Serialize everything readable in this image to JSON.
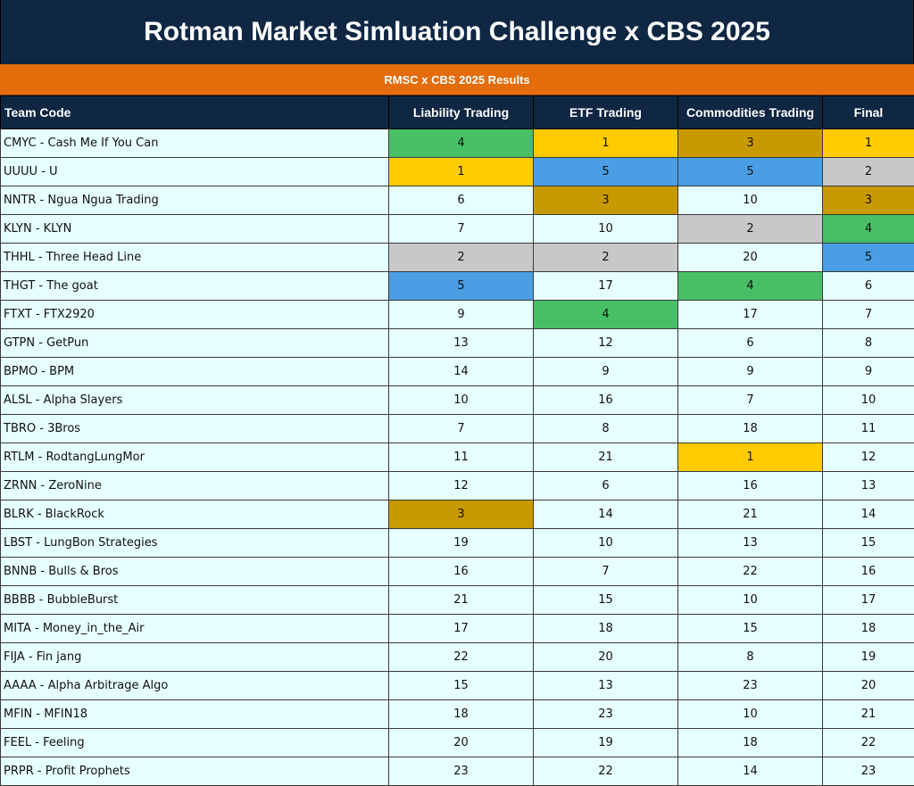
{
  "title": "Rotman Market Simluation Challenge x CBS 2025",
  "subtitle": "RMSC x CBS 2025 Results",
  "columns": [
    "Team Code",
    "Liability Trading",
    "ETF Trading",
    "Commodities Trading",
    "Final"
  ],
  "rank_colors": {
    "1": "#ffcc00",
    "2": "#c8c8c8",
    "3": "#c99a00",
    "4": "#48bf67",
    "5": "#4a9ee3"
  },
  "rows": [
    {
      "team": "CMYC - Cash Me If You Can",
      "liability": 4,
      "etf": 1,
      "commodities": 3,
      "final": 1
    },
    {
      "team": "UUUU - U",
      "liability": 1,
      "etf": 5,
      "commodities": 5,
      "final": 2
    },
    {
      "team": "NNTR - Ngua Ngua Trading",
      "liability": 6,
      "etf": 3,
      "commodities": 10,
      "final": 3
    },
    {
      "team": "KLYN - KLYN",
      "liability": 7,
      "etf": 10,
      "commodities": 2,
      "final": 4
    },
    {
      "team": "THHL - Three Head Line",
      "liability": 2,
      "etf": 2,
      "commodities": 20,
      "final": 5
    },
    {
      "team": "THGT - The goat",
      "liability": 5,
      "etf": 17,
      "commodities": 4,
      "final": 6
    },
    {
      "team": "FTXT - FTX2920",
      "liability": 9,
      "etf": 4,
      "commodities": 17,
      "final": 7
    },
    {
      "team": "GTPN - GetPun",
      "liability": 13,
      "etf": 12,
      "commodities": 6,
      "final": 8
    },
    {
      "team": "BPMO - BPM",
      "liability": 14,
      "etf": 9,
      "commodities": 9,
      "final": 9
    },
    {
      "team": "ALSL - Alpha Slayers",
      "liability": 10,
      "etf": 16,
      "commodities": 7,
      "final": 10
    },
    {
      "team": "TBRO - 3Bros",
      "liability": 7,
      "etf": 8,
      "commodities": 18,
      "final": 11
    },
    {
      "team": "RTLM - RodtangLungMor",
      "liability": 11,
      "etf": 21,
      "commodities": 1,
      "final": 12
    },
    {
      "team": "ZRNN - ZeroNine",
      "liability": 12,
      "etf": 6,
      "commodities": 16,
      "final": 13
    },
    {
      "team": "BLRK - BlackRock",
      "liability": 3,
      "etf": 14,
      "commodities": 21,
      "final": 14
    },
    {
      "team": "LBST - LungBon Strategies",
      "liability": 19,
      "etf": 10,
      "commodities": 13,
      "final": 15
    },
    {
      "team": "BNNB - Bulls & Bros",
      "liability": 16,
      "etf": 7,
      "commodities": 22,
      "final": 16
    },
    {
      "team": "BBBB - BubbleBurst",
      "liability": 21,
      "etf": 15,
      "commodities": 10,
      "final": 17
    },
    {
      "team": "MITA - Money_in_the_Air",
      "liability": 17,
      "etf": 18,
      "commodities": 15,
      "final": 18
    },
    {
      "team": "FIJA - Fin jang",
      "liability": 22,
      "etf": 20,
      "commodities": 8,
      "final": 19
    },
    {
      "team": "AAAA - Alpha Arbitrage Algo",
      "liability": 15,
      "etf": 13,
      "commodities": 23,
      "final": 20
    },
    {
      "team": "MFIN - MFIN18",
      "liability": 18,
      "etf": 23,
      "commodities": 10,
      "final": 21
    },
    {
      "team": "FEEL - Feeling",
      "liability": 20,
      "etf": 19,
      "commodities": 18,
      "final": 22
    },
    {
      "team": "PRPR - Profit Prophets",
      "liability": 23,
      "etf": 22,
      "commodities": 14,
      "final": 23
    }
  ]
}
